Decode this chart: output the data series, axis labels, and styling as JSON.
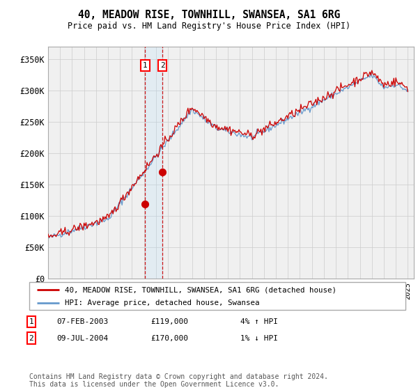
{
  "title": "40, MEADOW RISE, TOWNHILL, SWANSEA, SA1 6RG",
  "subtitle": "Price paid vs. HM Land Registry's House Price Index (HPI)",
  "xlim_start": 1995.0,
  "xlim_end": 2025.5,
  "ylim": [
    0,
    370000
  ],
  "yticks": [
    0,
    50000,
    100000,
    150000,
    200000,
    250000,
    300000,
    350000
  ],
  "ytick_labels": [
    "£0",
    "£50K",
    "£100K",
    "£150K",
    "£200K",
    "£250K",
    "£300K",
    "£350K"
  ],
  "sale1_x": 2003.1,
  "sale1_y": 119000,
  "sale2_x": 2004.54,
  "sale2_y": 170000,
  "legend_line1": "40, MEADOW RISE, TOWNHILL, SWANSEA, SA1 6RG (detached house)",
  "legend_line2": "HPI: Average price, detached house, Swansea",
  "table_rows": [
    {
      "num": "1",
      "date": "07-FEB-2003",
      "price": "£119,000",
      "hpi": "4% ↑ HPI"
    },
    {
      "num": "2",
      "date": "09-JUL-2004",
      "price": "£170,000",
      "hpi": "1% ↓ HPI"
    }
  ],
  "footnote": "Contains HM Land Registry data © Crown copyright and database right 2024.\nThis data is licensed under the Open Government Licence v3.0.",
  "line_color_red": "#cc0000",
  "line_color_blue": "#6699cc",
  "background_color": "#f0f0f0",
  "grid_color": "#cccccc",
  "plot_bg": "#f0f0f0"
}
